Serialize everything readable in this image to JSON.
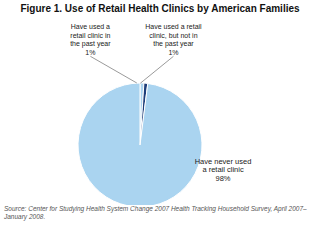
{
  "chart_data": {
    "type": "pie",
    "title": "Figure 1. Use of Retail Health Clinics by American Families",
    "categories": [
      "Have used a\nretail clinic in\nthe past year",
      "Have used a retail\nclinic, but not in\nthe past year",
      "Have never used\na retail clinic"
    ],
    "values": [
      1,
      1,
      98
    ],
    "value_labels": [
      "1%",
      "1%",
      "98%"
    ],
    "data_labels": true,
    "colors": [
      "#aad4f0",
      "#1f3f7a",
      "#aad4f0"
    ],
    "annotations": [
      "Source: Center for Studying Health System Change 2007 Health Tracking Household Survey, April 2007–January 2008."
    ]
  }
}
